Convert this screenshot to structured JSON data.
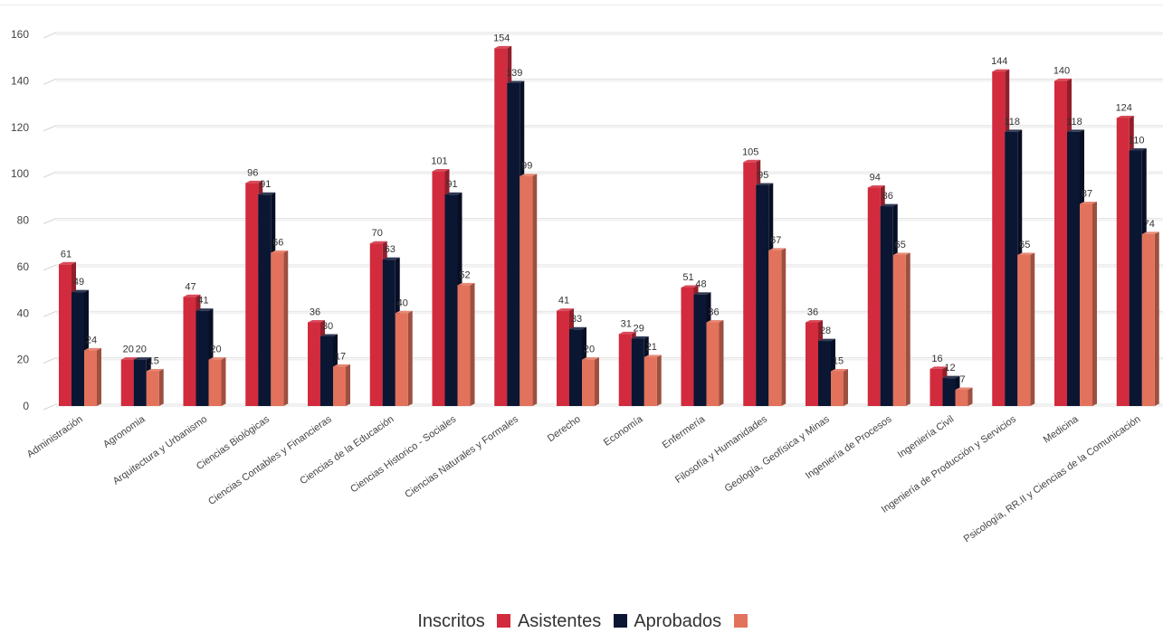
{
  "chart_data": {
    "type": "bar",
    "title": "",
    "xlabel": "",
    "ylabel": "",
    "ylim": [
      0,
      160
    ],
    "yticks": [
      0,
      20,
      40,
      60,
      80,
      100,
      120,
      140,
      160
    ],
    "grid": true,
    "legend_position": "bottom",
    "categories": [
      "Administración",
      "Agronomia",
      "Arquitectura y Urbanismo",
      "Ciencias Biológicas",
      "Ciencias Contables y Financieras",
      "Ciencias de la Educación",
      "Ciencias Historico - Sociales",
      "Ciencias Naturales y Formales",
      "Derecho",
      "Economía",
      "Enfermería",
      "Filosofía y Humanidades",
      "Geología, Geofísica y Minas",
      "Ingeniería de Procesos",
      "Ingeniería Civil",
      "Ingeniería de Producción y Servicios",
      "Medicina",
      "Psicología, RR.II y Ciencias de la Comunicación"
    ],
    "series": [
      {
        "name": "Asistentes",
        "color": "#d12b3d",
        "values": [
          61,
          20,
          47,
          96,
          36,
          70,
          101,
          154,
          41,
          31,
          51,
          105,
          36,
          94,
          16,
          144,
          140,
          124
        ]
      },
      {
        "name": "Aprobados",
        "color": "#0b1633",
        "values": [
          49,
          20,
          41,
          91,
          30,
          63,
          91,
          139,
          33,
          29,
          48,
          95,
          28,
          86,
          12,
          118,
          118,
          110
        ]
      },
      {
        "name": "",
        "color": "#e2725b",
        "values": [
          24,
          15,
          20,
          66,
          17,
          40,
          52,
          99,
          20,
          21,
          36,
          67,
          15,
          65,
          7,
          65,
          87,
          74
        ]
      }
    ]
  },
  "legend": {
    "lead_text": "Inscritos",
    "items": [
      {
        "label": "Asistentes",
        "color": "#d12b3d"
      },
      {
        "label": "Aprobados",
        "color": "#0b1633"
      },
      {
        "label": "",
        "color": "#e2725b"
      }
    ]
  }
}
